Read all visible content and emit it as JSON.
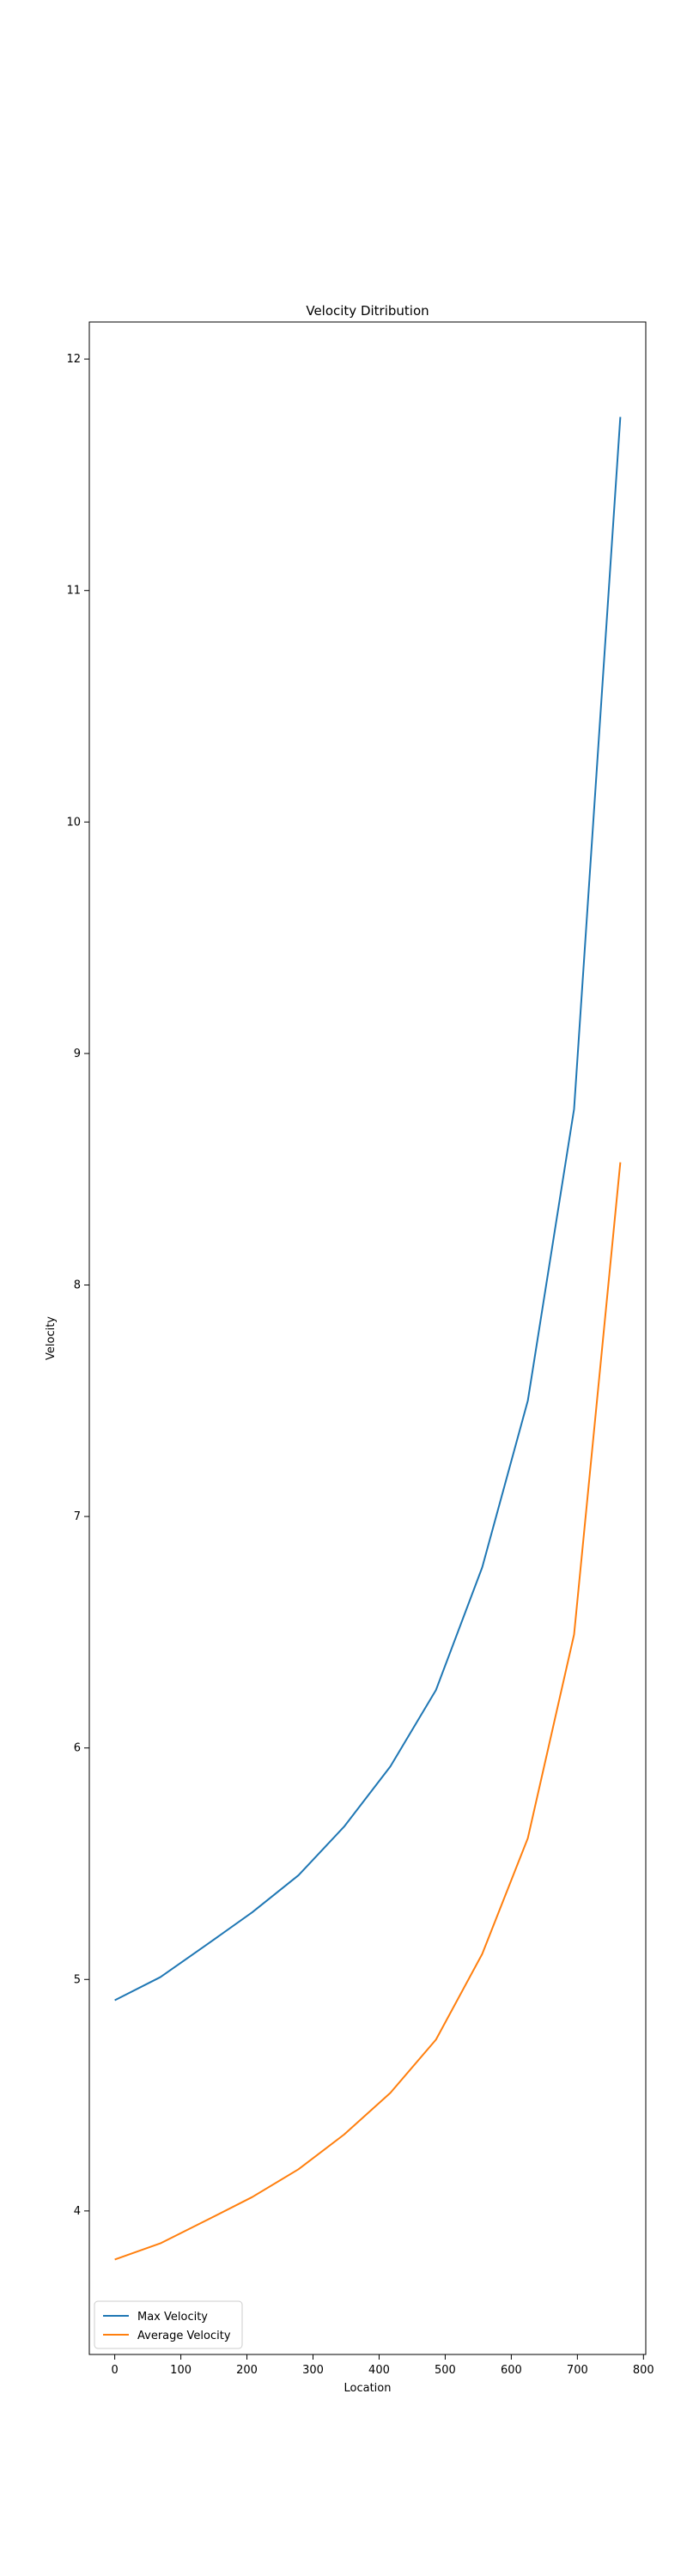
{
  "chart_data": {
    "type": "line",
    "title": "Velocity Ditribution",
    "xlabel": "Location",
    "ylabel": "Velocity",
    "xlim": [
      -38.5,
      803.5
    ],
    "ylim": [
      3.38,
      12.16
    ],
    "xticks": [
      0,
      100,
      200,
      300,
      400,
      500,
      600,
      700,
      800
    ],
    "yticks": [
      4,
      5,
      6,
      7,
      8,
      9,
      10,
      11,
      12
    ],
    "x": [
      0,
      69,
      139,
      208,
      278,
      347,
      417,
      486,
      556,
      625,
      695,
      765
    ],
    "series": [
      {
        "name": "Max Velocity",
        "color": "#1f77b4",
        "values": [
          4.91,
          5.01,
          5.15,
          5.29,
          5.45,
          5.66,
          5.92,
          6.25,
          6.78,
          7.5,
          8.76,
          11.75
        ]
      },
      {
        "name": "Average Velocity",
        "color": "#ff7f0e",
        "values": [
          3.79,
          3.86,
          3.96,
          4.06,
          4.18,
          4.33,
          4.51,
          4.74,
          5.11,
          5.61,
          6.49,
          8.53
        ]
      }
    ],
    "legend_position": "lower-left",
    "grid": false
  }
}
